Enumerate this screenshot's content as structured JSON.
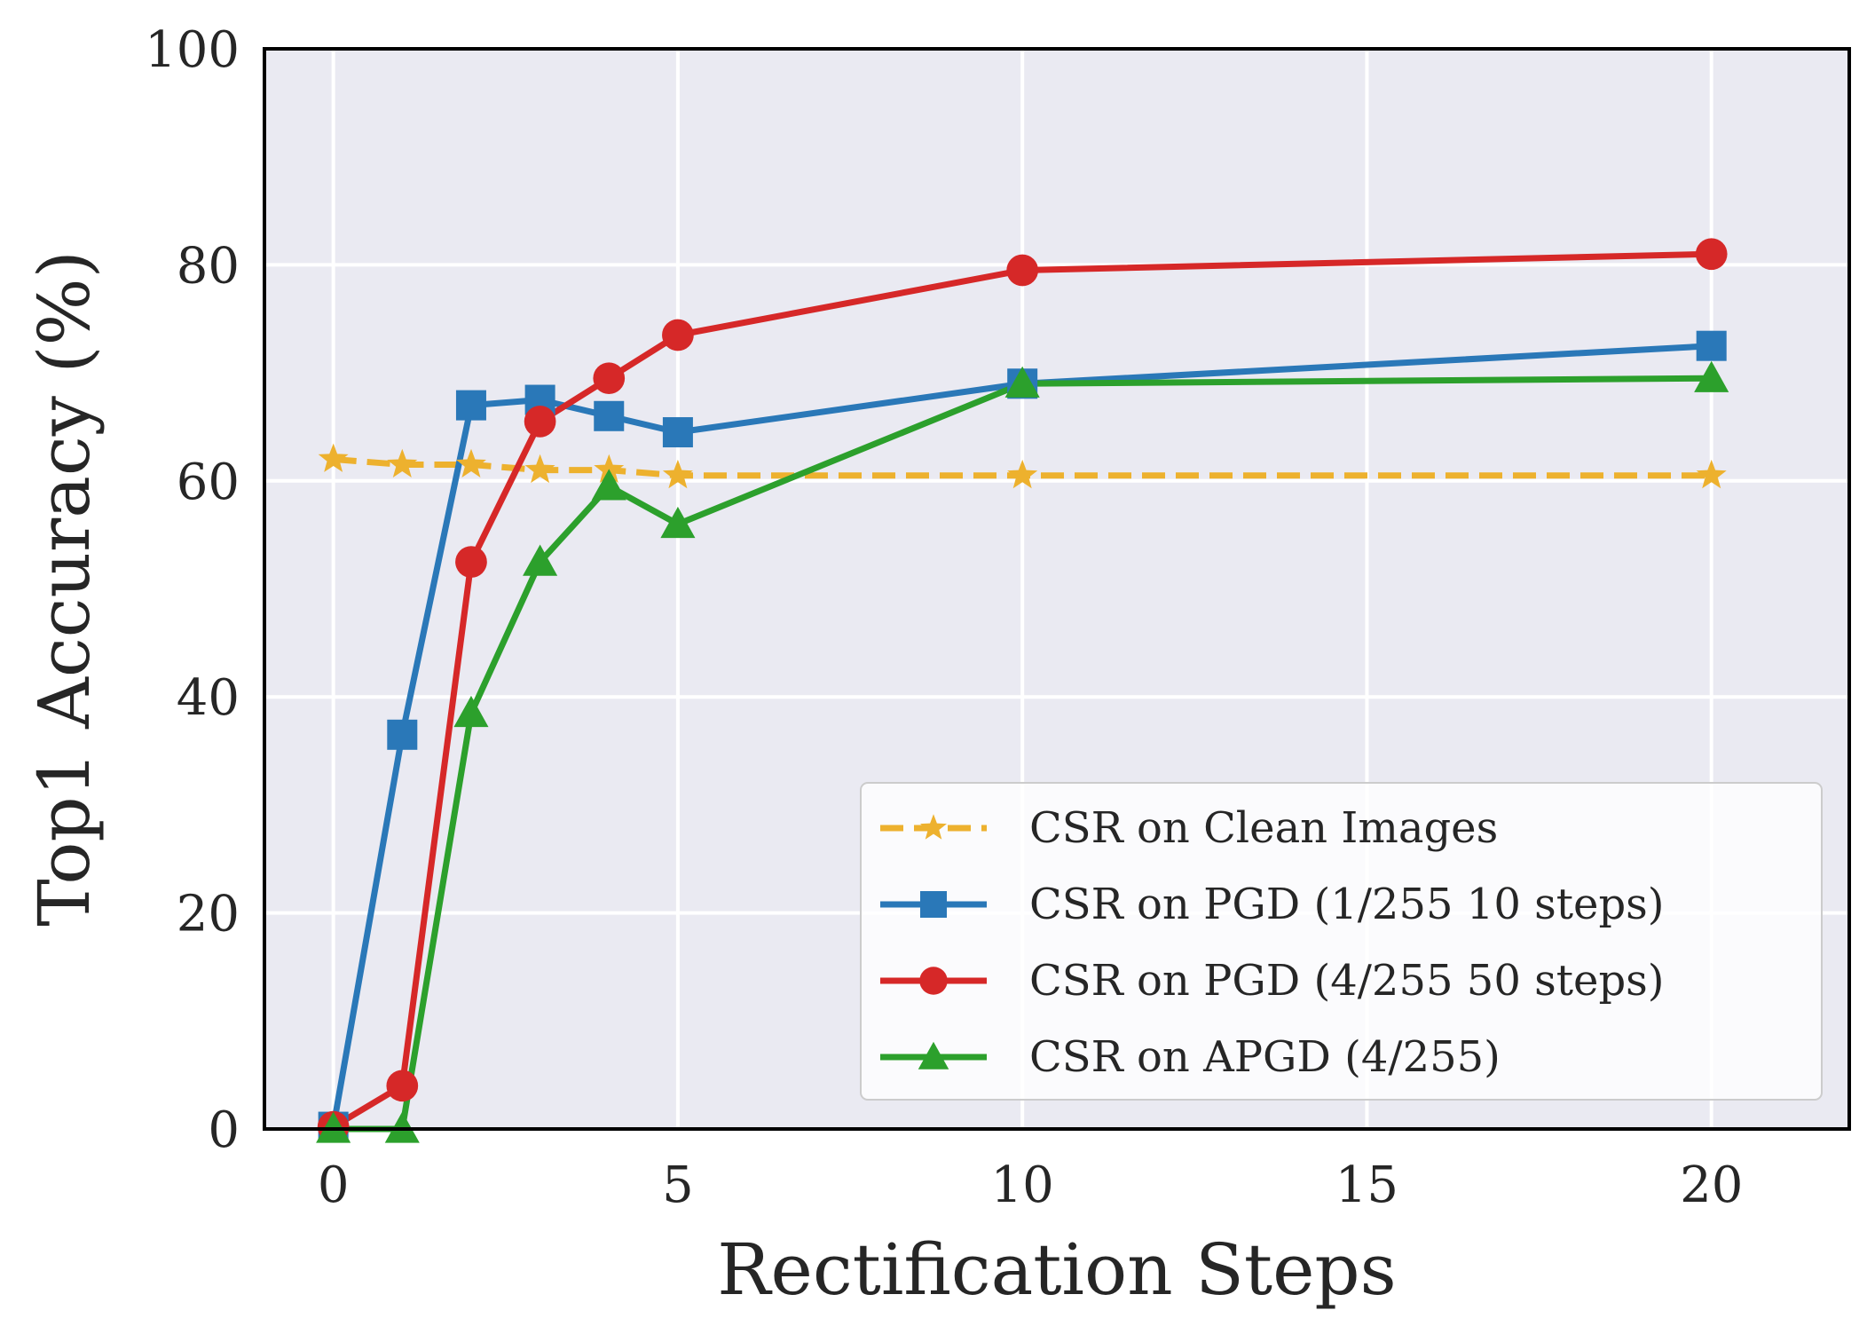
{
  "chart_data": {
    "type": "line",
    "xlabel": "Rectification Steps",
    "ylabel": "Top1 Accuracy (%)",
    "xlim": [
      -1,
      22
    ],
    "ylim": [
      0,
      100
    ],
    "xticks": [
      0,
      5,
      10,
      15,
      20
    ],
    "yticks": [
      0,
      20,
      40,
      60,
      80,
      100
    ],
    "grid": true,
    "legend_position": "lower-right",
    "series": [
      {
        "name": "CSR on Clean Images",
        "color": "#EDB12E",
        "dash": "dashed",
        "marker": "star",
        "x": [
          0,
          1,
          2,
          3,
          4,
          5,
          10,
          20
        ],
        "y": [
          62.0,
          61.5,
          61.5,
          61.0,
          61.0,
          60.5,
          60.5,
          60.5
        ]
      },
      {
        "name": "CSR on PGD (1/255 10 steps)",
        "color": "#2A78B8",
        "dash": "solid",
        "marker": "square",
        "x": [
          0,
          1,
          2,
          3,
          4,
          5,
          10,
          20
        ],
        "y": [
          0.2,
          36.5,
          67.0,
          67.5,
          66.0,
          64.5,
          69.0,
          72.5
        ]
      },
      {
        "name": "CSR on PGD (4/255 50 steps)",
        "color": "#D62828",
        "dash": "solid",
        "marker": "circle",
        "x": [
          0,
          1,
          2,
          3,
          4,
          5,
          10,
          20
        ],
        "y": [
          0.2,
          4.0,
          52.5,
          65.5,
          69.5,
          73.5,
          79.5,
          81.0
        ]
      },
      {
        "name": "CSR on APGD (4/255)",
        "color": "#2CA02C",
        "dash": "solid",
        "marker": "triangle",
        "x": [
          0,
          1,
          2,
          3,
          4,
          5,
          10,
          20
        ],
        "y": [
          0.0,
          0.0,
          38.5,
          52.5,
          59.5,
          56.0,
          69.0,
          69.5
        ]
      }
    ]
  }
}
